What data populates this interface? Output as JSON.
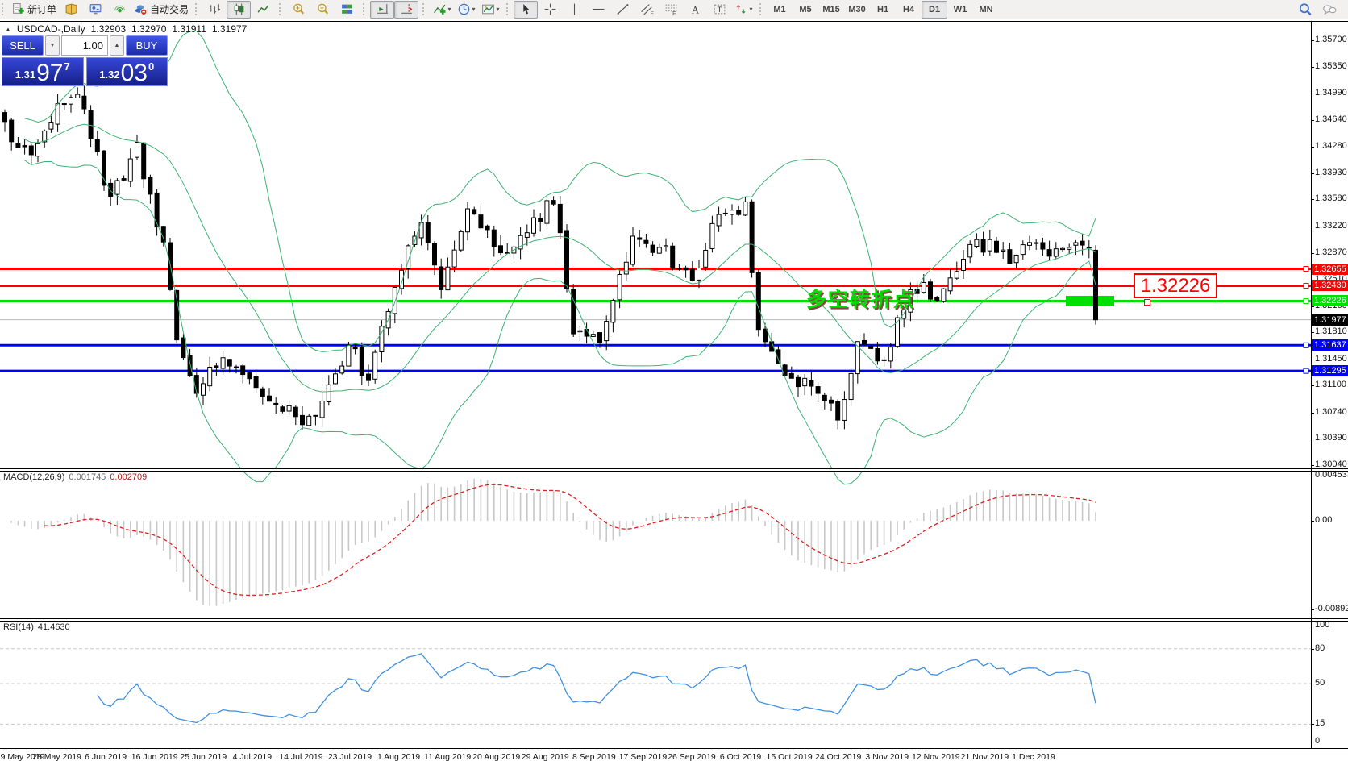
{
  "icons": {
    "caret_down": "▼",
    "caret_up": "▲",
    "dropdown": "▾",
    "window_marker": "▲"
  },
  "toolbar": {
    "groups": [
      {
        "items": [
          {
            "icon": "new-order",
            "label": "新订单",
            "name": "new-order-button"
          },
          {
            "icon": "book",
            "name": "journal-button"
          },
          {
            "icon": "market",
            "name": "market-watch-button"
          },
          {
            "icon": "signal",
            "name": "signals-button"
          },
          {
            "icon": "autotrade",
            "label": "自动交易",
            "name": "autotrading-button"
          }
        ]
      },
      {
        "items": [
          {
            "icon": "bars",
            "name": "bar-chart-button"
          },
          {
            "icon": "candles",
            "name": "candlestick-chart-button",
            "active": true
          },
          {
            "icon": "linechart",
            "name": "line-chart-button"
          }
        ]
      },
      {
        "items": [
          {
            "icon": "zoom-in",
            "name": "zoom-in-button"
          },
          {
            "icon": "zoom-out",
            "name": "zoom-out-button"
          },
          {
            "icon": "tile",
            "name": "tile-windows-button"
          }
        ]
      },
      {
        "items": [
          {
            "icon": "autoscroll",
            "name": "auto-scroll-button",
            "active": true
          },
          {
            "icon": "shift",
            "name": "chart-shift-button",
            "active": true
          }
        ]
      },
      {
        "items": [
          {
            "icon": "indicators",
            "name": "indicators-button",
            "dropdown": true
          },
          {
            "icon": "clock",
            "name": "periods-button",
            "dropdown": true
          },
          {
            "icon": "template",
            "name": "templates-button",
            "dropdown": true
          }
        ]
      },
      {
        "items": [
          {
            "icon": "cursor",
            "name": "cursor-button",
            "active": true
          },
          {
            "icon": "crosshair",
            "name": "crosshair-button"
          },
          {
            "icon": "vline",
            "name": "vertical-line-button"
          },
          {
            "icon": "hline",
            "name": "horizontal-line-button"
          },
          {
            "icon": "tline",
            "name": "trendline-button"
          },
          {
            "icon": "channel",
            "name": "equidistant-channel-button"
          },
          {
            "icon": "fibo",
            "name": "fibonacci-button"
          },
          {
            "icon": "text-a",
            "name": "text-button"
          },
          {
            "icon": "label-t",
            "name": "text-label-button"
          },
          {
            "icon": "arrows",
            "name": "arrows-button",
            "dropdown": true
          }
        ]
      }
    ],
    "timeframes": {
      "items": [
        "M1",
        "M5",
        "M15",
        "M30",
        "H1",
        "H4",
        "D1",
        "W1",
        "MN"
      ],
      "active": "D1"
    },
    "right_icons": [
      {
        "icon": "search",
        "name": "search-button"
      },
      {
        "icon": "chat",
        "name": "chat-button"
      }
    ]
  },
  "header": {
    "marker": "▲",
    "symbol": "USDCAD-,Daily",
    "open": "1.32903",
    "high": "1.32970",
    "low": "1.31911",
    "close": "1.31977"
  },
  "trade_panel": {
    "sell_label": "SELL",
    "buy_label": "BUY",
    "volume": "1.00",
    "sell_price_small": "1.31",
    "sell_price_big": "97",
    "sell_price_sup": "7",
    "buy_price_small": "1.32",
    "buy_price_big": "03",
    "buy_price_sup": "0"
  },
  "price_axis": {
    "ticks": [
      1.357,
      1.3535,
      1.3499,
      1.3464,
      1.3428,
      1.3393,
      1.3358,
      1.3322,
      1.3287,
      1.3251,
      1.3216,
      1.3181,
      1.3145,
      1.311,
      1.3074,
      1.3039,
      1.3004
    ]
  },
  "hlines": [
    {
      "price": 1.32655,
      "color": "#FF0000",
      "name": "resistance-line-1"
    },
    {
      "price": 1.3243,
      "color": "#FF0000",
      "name": "resistance-line-2"
    },
    {
      "price": 1.32226,
      "color": "#00E000",
      "name": "pivot-line"
    },
    {
      "price": 1.31637,
      "color": "#0000FF",
      "name": "support-line-1"
    },
    {
      "price": 1.31295,
      "color": "#0000FF",
      "name": "support-line-2"
    }
  ],
  "current_price": {
    "value": 1.31977,
    "badge_color": "#000000"
  },
  "green_box": {
    "color": "#00E000"
  },
  "callout": {
    "text": "1.32226"
  },
  "annotation": {
    "text": "多空转折点"
  },
  "macd_panel": {
    "label": "MACD(12,26,9)",
    "value_main": "0.001745",
    "value_signal": "0.002709",
    "axis": [
      {
        "v": 0.004533,
        "label": "0.004533"
      },
      {
        "v": 0,
        "label": "0.00"
      },
      {
        "v": -0.008928,
        "label": "-0.008928"
      }
    ],
    "histogram_color": "#C8C8C8",
    "signal_color": "#E02020"
  },
  "rsi_panel": {
    "label": "RSI(14)",
    "value": "41.4630",
    "axis": [
      100,
      80,
      50,
      15,
      0
    ],
    "levels": [
      80,
      50,
      15
    ],
    "line_color": "#4090E0"
  },
  "date_axis": [
    "9 May 2019",
    "28 May 2019",
    "6 Jun 2019",
    "16 Jun 2019",
    "25 Jun 2019",
    "4 Jul 2019",
    "14 Jul 2019",
    "23 Jul 2019",
    "1 Aug 2019",
    "11 Aug 2019",
    "20 Aug 2019",
    "29 Aug 2019",
    "8 Sep 2019",
    "17 Sep 2019",
    "26 Sep 2019",
    "6 Oct 2019",
    "15 Oct 2019",
    "24 Oct 2019",
    "3 Nov 2019",
    "12 Nov 2019",
    "21 Nov 2019",
    "1 Dec 2019"
  ],
  "chart_data": {
    "type": "candlestick",
    "symbol": "USDCAD",
    "period": "Daily",
    "ylim": [
      1.3004,
      1.357
    ],
    "bull_color": "#FFFFFF",
    "bear_color": "#000000",
    "outline_color": "#000000",
    "bollinger_color": "#3CB371",
    "candle_count": 166,
    "price_path": [
      [
        0,
        1.3455
      ],
      [
        4,
        1.342
      ],
      [
        8,
        1.348
      ],
      [
        11,
        1.3505
      ],
      [
        16,
        1.336
      ],
      [
        20,
        1.3425
      ],
      [
        24,
        1.33
      ],
      [
        26,
        1.317
      ],
      [
        29,
        1.311
      ],
      [
        34,
        1.315
      ],
      [
        38,
        1.311
      ],
      [
        42,
        1.3075
      ],
      [
        46,
        1.306
      ],
      [
        49,
        1.3105
      ],
      [
        52,
        1.316
      ],
      [
        55,
        1.3125
      ],
      [
        60,
        1.327
      ],
      [
        63,
        1.333
      ],
      [
        66,
        1.324
      ],
      [
        70,
        1.334
      ],
      [
        75,
        1.3285
      ],
      [
        79,
        1.332
      ],
      [
        83,
        1.336
      ],
      [
        86,
        1.318
      ],
      [
        90,
        1.3175
      ],
      [
        95,
        1.33
      ],
      [
        100,
        1.329
      ],
      [
        104,
        1.324
      ],
      [
        108,
        1.334
      ],
      [
        112,
        1.335
      ],
      [
        114,
        1.318
      ],
      [
        118,
        1.3125
      ],
      [
        122,
        1.311
      ],
      [
        126,
        1.3065
      ],
      [
        129,
        1.316
      ],
      [
        133,
        1.3145
      ],
      [
        137,
        1.3245
      ],
      [
        141,
        1.322
      ],
      [
        145,
        1.329
      ],
      [
        149,
        1.33
      ],
      [
        152,
        1.328
      ],
      [
        155,
        1.331
      ],
      [
        158,
        1.329
      ],
      [
        161,
        1.3295
      ],
      [
        164,
        1.3297
      ],
      [
        165,
        1.31977
      ]
    ],
    "last_candle": {
      "open": 1.32903,
      "high": 1.3297,
      "low": 1.31911,
      "close": 1.31977
    },
    "levels": [
      1.32655,
      1.3243,
      1.32226,
      1.31637,
      1.31295
    ],
    "indicators": [
      {
        "name": "Bollinger Bands",
        "period": 20,
        "deviation": 2
      },
      {
        "name": "MACD",
        "fast": 12,
        "slow": 26,
        "signal": 9,
        "value_main": 0.001745,
        "value_signal": 0.002709
      },
      {
        "name": "RSI",
        "period": 14,
        "value": 41.463
      }
    ]
  }
}
